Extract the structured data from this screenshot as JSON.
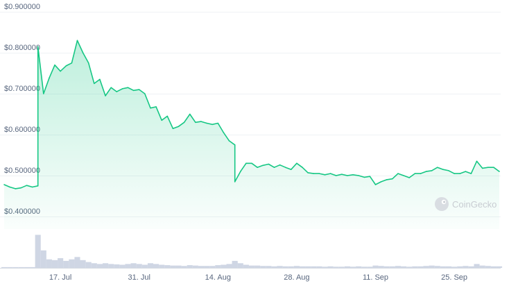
{
  "watermark": {
    "text": "CoinGecko",
    "icon": "gecko-logo-icon"
  },
  "colors": {
    "line": "#16c784",
    "fill": "#16c784",
    "volume": "#cfd6e4",
    "grid": "#eff2f5",
    "label": "#58667e"
  },
  "chart_data": [
    {
      "type": "line",
      "ylim": [
        0.4,
        0.9
      ],
      "y_ticks": [
        0.4,
        0.5,
        0.6,
        0.7,
        0.8,
        0.9
      ],
      "y_tick_labels": [
        "$0.400000",
        "$0.500000",
        "$0.600000",
        "$0.700000",
        "$0.800000",
        "$0.900000"
      ],
      "x_range": [
        "2023-07-07",
        "2023-10-03"
      ],
      "x_ticks": [
        "2023-07-17",
        "2023-07-31",
        "2023-08-14",
        "2023-08-28",
        "2023-09-11",
        "2023-09-25"
      ],
      "x_tick_labels": [
        "17. Jul",
        "31. Jul",
        "14. Aug",
        "28. Aug",
        "11. Sep",
        "25. Sep"
      ],
      "grid": true,
      "x": [
        "2023-07-07",
        "2023-07-08",
        "2023-07-09",
        "2023-07-10",
        "2023-07-11",
        "2023-07-12",
        "2023-07-13",
        "2023-07-13",
        "2023-07-14",
        "2023-07-15",
        "2023-07-16",
        "2023-07-17",
        "2023-07-18",
        "2023-07-19",
        "2023-07-20",
        "2023-07-21",
        "2023-07-22",
        "2023-07-23",
        "2023-07-24",
        "2023-07-25",
        "2023-07-26",
        "2023-07-27",
        "2023-07-28",
        "2023-07-29",
        "2023-07-30",
        "2023-07-31",
        "2023-08-01",
        "2023-08-02",
        "2023-08-03",
        "2023-08-04",
        "2023-08-05",
        "2023-08-06",
        "2023-08-07",
        "2023-08-08",
        "2023-08-09",
        "2023-08-10",
        "2023-08-11",
        "2023-08-12",
        "2023-08-13",
        "2023-08-14",
        "2023-08-15",
        "2023-08-16",
        "2023-08-17",
        "2023-08-17",
        "2023-08-18",
        "2023-08-19",
        "2023-08-20",
        "2023-08-21",
        "2023-08-22",
        "2023-08-23",
        "2023-08-24",
        "2023-08-25",
        "2023-08-26",
        "2023-08-27",
        "2023-08-28",
        "2023-08-29",
        "2023-08-30",
        "2023-08-31",
        "2023-09-01",
        "2023-09-02",
        "2023-09-03",
        "2023-09-04",
        "2023-09-05",
        "2023-09-06",
        "2023-09-07",
        "2023-09-08",
        "2023-09-09",
        "2023-09-10",
        "2023-09-11",
        "2023-09-12",
        "2023-09-13",
        "2023-09-14",
        "2023-09-15",
        "2023-09-16",
        "2023-09-17",
        "2023-09-18",
        "2023-09-19",
        "2023-09-20",
        "2023-09-21",
        "2023-09-22",
        "2023-09-23",
        "2023-09-24",
        "2023-09-25",
        "2023-09-26",
        "2023-09-27",
        "2023-09-28",
        "2023-09-29",
        "2023-09-30",
        "2023-10-01",
        "2023-10-02",
        "2023-10-03"
      ],
      "y": [
        0.478,
        0.472,
        0.468,
        0.47,
        0.476,
        0.472,
        0.475,
        0.815,
        0.7,
        0.738,
        0.77,
        0.755,
        0.768,
        0.775,
        0.83,
        0.8,
        0.775,
        0.725,
        0.735,
        0.695,
        0.715,
        0.705,
        0.712,
        0.715,
        0.708,
        0.71,
        0.7,
        0.665,
        0.668,
        0.635,
        0.645,
        0.615,
        0.62,
        0.63,
        0.65,
        0.63,
        0.632,
        0.628,
        0.625,
        0.628,
        0.605,
        0.585,
        0.575,
        0.485,
        0.51,
        0.53,
        0.53,
        0.52,
        0.525,
        0.528,
        0.52,
        0.526,
        0.52,
        0.515,
        0.53,
        0.52,
        0.507,
        0.505,
        0.505,
        0.502,
        0.505,
        0.5,
        0.503,
        0.5,
        0.502,
        0.5,
        0.496,
        0.498,
        0.478,
        0.485,
        0.49,
        0.492,
        0.505,
        0.5,
        0.495,
        0.505,
        0.505,
        0.51,
        0.512,
        0.52,
        0.515,
        0.512,
        0.505,
        0.505,
        0.51,
        0.505,
        0.535,
        0.518,
        0.52,
        0.52,
        0.51
      ],
      "volume_note": "",
      "volume": [
        0.02,
        0.02,
        0.02,
        0.02,
        0.02,
        0.02,
        0.02,
        0.85,
        0.45,
        0.22,
        0.2,
        0.25,
        0.18,
        0.22,
        0.28,
        0.2,
        0.15,
        0.12,
        0.1,
        0.12,
        0.1,
        0.09,
        0.08,
        0.1,
        0.12,
        0.1,
        0.08,
        0.12,
        0.1,
        0.08,
        0.07,
        0.06,
        0.06,
        0.05,
        0.07,
        0.06,
        0.05,
        0.05,
        0.05,
        0.07,
        0.08,
        0.1,
        0.15,
        0.18,
        0.12,
        0.08,
        0.06,
        0.06,
        0.05,
        0.05,
        0.04,
        0.05,
        0.04,
        0.04,
        0.05,
        0.04,
        0.04,
        0.04,
        0.04,
        0.03,
        0.04,
        0.03,
        0.03,
        0.04,
        0.03,
        0.04,
        0.03,
        0.03,
        0.06,
        0.05,
        0.04,
        0.04,
        0.05,
        0.04,
        0.03,
        0.04,
        0.04,
        0.05,
        0.06,
        0.05,
        0.04,
        0.04,
        0.03,
        0.04,
        0.05,
        0.04,
        0.1,
        0.06,
        0.05,
        0.04,
        0.04
      ]
    }
  ]
}
